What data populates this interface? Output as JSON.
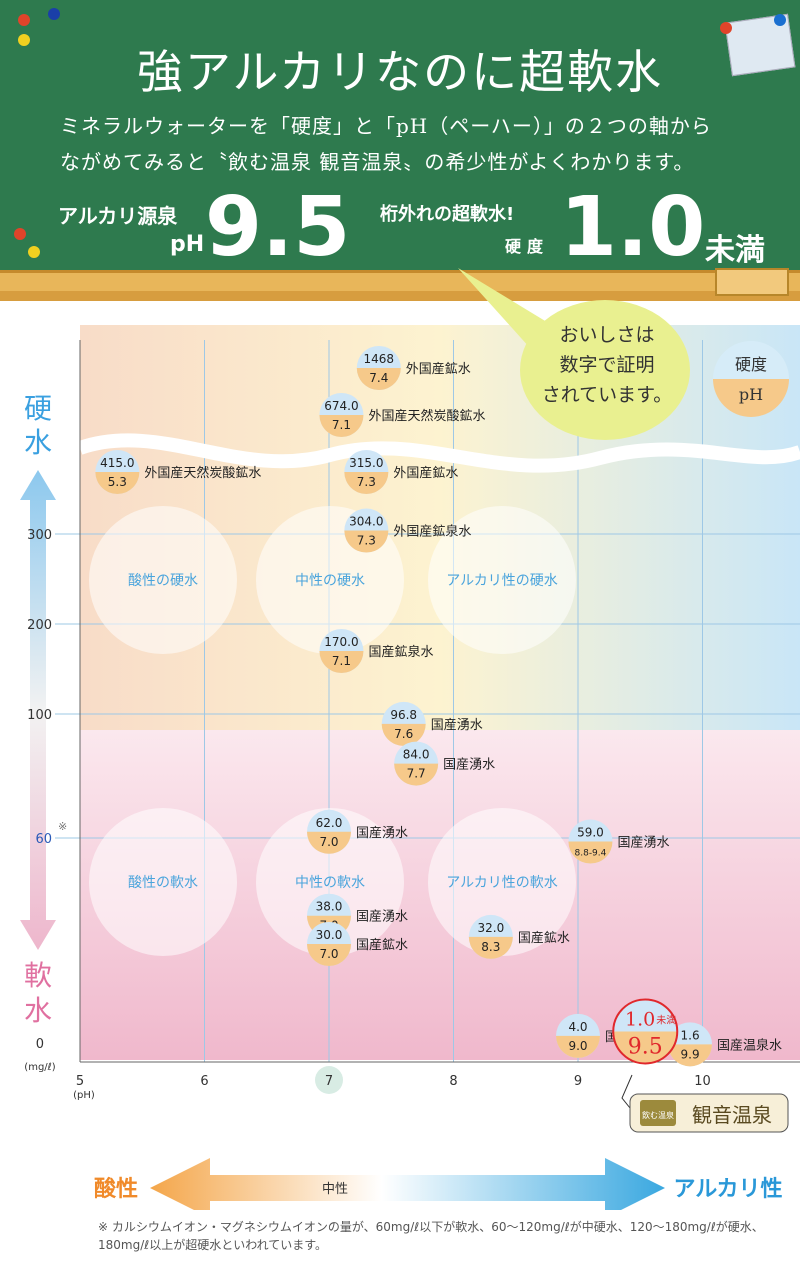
{
  "board": {
    "title": "強アルカリなのに超軟水",
    "subtitle_line1": "ミネラルウォーターを「硬度」と「pH（ペーハー）」の２つの軸から",
    "subtitle_line2": "ながめてみると〝飲む温泉 観音温泉〟の希少性がよくわかります。",
    "ph_caption": "アルカリ源泉",
    "ph_prefix": "pH",
    "ph_value": "9.5",
    "soft_caption": "桁外れの超軟水!",
    "hardness_prefix": "硬度",
    "hardness_value": "1.0",
    "hardness_unit": "未満"
  },
  "bubble": {
    "line1": "おいしさは",
    "line2": "数字で証明",
    "line3": "されています。"
  },
  "legend_key": {
    "top": "硬度",
    "bottom": "pH"
  },
  "y_axis_title_top": [
    "硬",
    "水"
  ],
  "y_axis_title_bottom": [
    "軟",
    "水"
  ],
  "y_unit": "(mg/ℓ)",
  "x_unit": "(pH)",
  "asterisk_mark": "※",
  "bottom_scale": {
    "left": "酸性",
    "middle": "中性",
    "right": "アルカリ性"
  },
  "zones": {
    "acid_hard": "酸性の硬水",
    "neutral_hard": "中性の硬水",
    "alkali_hard": "アルカリ性の硬水",
    "acid_soft": "酸性の軟水",
    "neutral_soft": "中性の軟水",
    "alkali_soft": "アルカリ性の軟水"
  },
  "featured": {
    "hardness": "1.0",
    "hardness_suffix": "未満",
    "ph": "9.5",
    "badge": "観音温泉",
    "badge_mark": "飲む温泉"
  },
  "footnote": "※ カルシウムイオン・マグネシウムイオンの量が、60mg/ℓ以下が軟水、60〜120mg/ℓが中硬水、120〜180mg/ℓが硬水、180mg/ℓ以上が超硬水といわれています。",
  "colors": {
    "board": "#2e7a4e",
    "acid": "#f0a04a",
    "alkali": "#3aa8e0",
    "hard": "#3aa0e0",
    "soft": "#e070a0",
    "featured": "#e0282c"
  },
  "chart_data": {
    "type": "scatter",
    "xlabel": "(pH)",
    "ylabel": "(mg/ℓ)",
    "xlim": [
      5,
      10.8
    ],
    "x_ticks": [
      "5",
      "6",
      "7",
      "8",
      "9",
      "10"
    ],
    "y_ticks": [
      "0",
      "60",
      "100",
      "200",
      "300"
    ],
    "y_axis_break": "above 330 (wavy break)",
    "points": [
      {
        "hardness": "1468",
        "ph": "7.4",
        "label": "外国産鉱水",
        "x": 7.4,
        "y": 1468
      },
      {
        "hardness": "674.0",
        "ph": "7.1",
        "label": "外国産天然炭酸鉱水",
        "x": 7.1,
        "y": 674.0
      },
      {
        "hardness": "415.0",
        "ph": "5.3",
        "label": "外国産天然炭酸鉱水",
        "x": 5.3,
        "y": 415.0
      },
      {
        "hardness": "315.0",
        "ph": "7.3",
        "label": "外国産鉱水",
        "x": 7.3,
        "y": 315.0
      },
      {
        "hardness": "304.0",
        "ph": "7.3",
        "label": "外国産鉱泉水",
        "x": 7.3,
        "y": 304.0
      },
      {
        "hardness": "170.0",
        "ph": "7.1",
        "label": "国産鉱泉水",
        "x": 7.1,
        "y": 170.0
      },
      {
        "hardness": "96.8",
        "ph": "7.6",
        "label": "国産湧水",
        "x": 7.6,
        "y": 96.8
      },
      {
        "hardness": "84.0",
        "ph": "7.7",
        "label": "国産湧水",
        "x": 7.7,
        "y": 84.0
      },
      {
        "hardness": "62.0",
        "ph": "7.0",
        "label": "国産湧水",
        "x": 7.0,
        "y": 62.0
      },
      {
        "hardness": "59.0",
        "ph": "8.8-9.4",
        "label": "国産湧水",
        "x": 9.1,
        "y": 59.0
      },
      {
        "hardness": "38.0",
        "ph": "7.0",
        "label": "国産湧水",
        "x": 7.0,
        "y": 38.0
      },
      {
        "hardness": "32.0",
        "ph": "8.3",
        "label": "国産鉱水",
        "x": 8.3,
        "y": 32.0
      },
      {
        "hardness": "30.0",
        "ph": "7.0",
        "label": "国産鉱水",
        "x": 7.0,
        "y": 30.0
      },
      {
        "hardness": "4.0",
        "ph": "9.0",
        "label": "国産温泉水",
        "x": 9.0,
        "y": 4.0
      },
      {
        "hardness": "1.6",
        "ph": "9.9",
        "label": "国産温泉水",
        "x": 9.9,
        "y": 1.6
      },
      {
        "hardness": "1.0未満",
        "ph": "9.5",
        "label": "観音温泉",
        "x": 9.5,
        "y": 1.0
      }
    ]
  }
}
